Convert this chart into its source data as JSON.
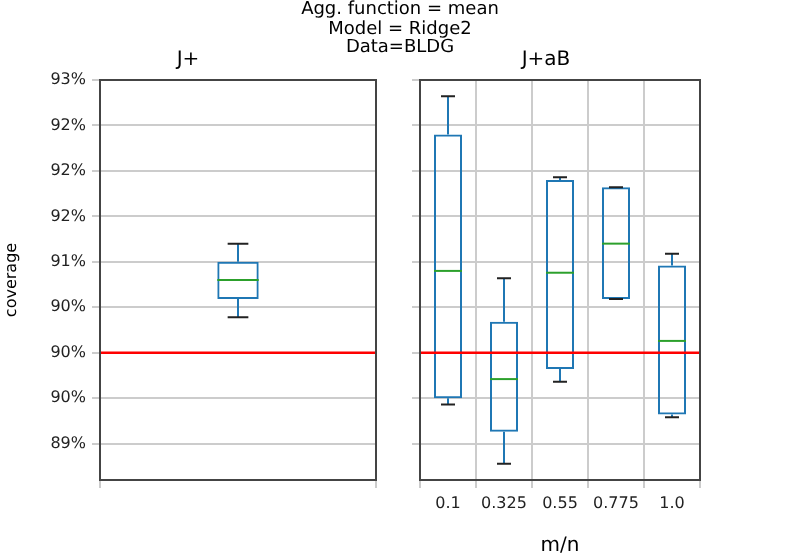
{
  "chart_data": [
    {
      "type": "box",
      "title": "J+",
      "ylabel": "coverage",
      "categories": [
        null
      ],
      "color": "#1f77b4",
      "boxes": [
        {
          "low": 90.39,
          "q1": 90.59,
          "median": 90.8,
          "q3": 91.0,
          "high": 91.2
        }
      ],
      "ylim": [
        88.6,
        93.0
      ],
      "yticks": [
        {
          "value": 89,
          "label": "89%"
        },
        {
          "value": 89.5,
          "label": "90%"
        },
        {
          "value": 90,
          "label": "90%"
        },
        {
          "value": 90.5,
          "label": "90%"
        },
        {
          "value": 91,
          "label": "91%"
        },
        {
          "value": 91.5,
          "label": "92%"
        },
        {
          "value": 92,
          "label": "92%"
        },
        {
          "value": 92.5,
          "label": "92%"
        },
        {
          "value": 93,
          "label": "93%"
        }
      ],
      "ref_lines": [
        {
          "axis": "y",
          "value": 90,
          "color": "#ff0000"
        }
      ],
      "grid": true,
      "tick_labels": "y",
      "annotations": [
        "Agg. function = mean\nModel = Ridge2\nData=BLDG"
      ]
    },
    {
      "type": "box",
      "title": "J+aB",
      "xlabel": "m/n",
      "categories": [
        "0.1",
        "0.325",
        "0.55",
        "0.775",
        "1.0"
      ],
      "color": "#1f77b4",
      "boxes": [
        {
          "low": 89.43,
          "q1": 89.5,
          "median": 90.9,
          "q3": 92.4,
          "high": 92.82
        },
        {
          "low": 88.78,
          "q1": 89.13,
          "median": 89.71,
          "q3": 90.34,
          "high": 90.82
        },
        {
          "low": 89.68,
          "q1": 89.82,
          "median": 90.88,
          "q3": 91.9,
          "high": 91.93
        },
        {
          "low": 90.59,
          "q1": 90.59,
          "median": 91.2,
          "q3": 91.82,
          "high": 91.82
        },
        {
          "low": 89.29,
          "q1": 89.32,
          "median": 90.13,
          "q3": 90.96,
          "high": 91.09
        }
      ],
      "ylim": [
        88.6,
        93.0
      ],
      "yticks": [
        {
          "value": 89,
          "label": null
        },
        {
          "value": 89.5,
          "label": null
        },
        {
          "value": 90,
          "label": null
        },
        {
          "value": 90.5,
          "label": null
        },
        {
          "value": 91,
          "label": null
        },
        {
          "value": 91.5,
          "label": null
        },
        {
          "value": 92,
          "label": null
        },
        {
          "value": 92.5,
          "label": null
        },
        {
          "value": 93,
          "label": null
        }
      ],
      "ref_lines": [
        {
          "axis": "y",
          "value": 90,
          "color": "#ff0000"
        }
      ],
      "grid": true,
      "tick_labels": "x"
    }
  ]
}
